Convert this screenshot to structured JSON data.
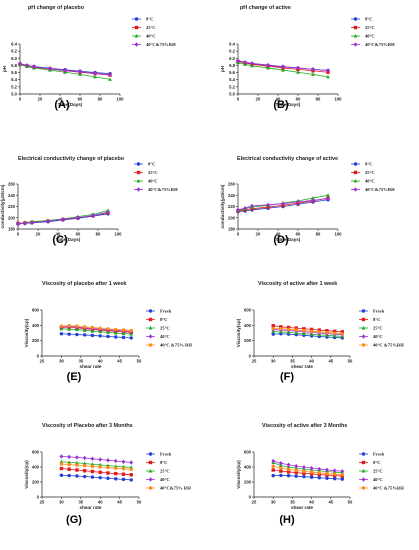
{
  "chart_data": [
    {
      "id": "A",
      "type": "line",
      "title": "pH change of placebo",
      "xlabel": "Time(Days)",
      "ylabel": "pH",
      "xlim": [
        0,
        100
      ],
      "ylim": [
        5.0,
        6.4
      ],
      "xticks": [
        0,
        20,
        40,
        60,
        80,
        100
      ],
      "yticks": [
        5.0,
        5.2,
        5.4,
        5.6,
        5.8,
        6.0,
        6.2,
        6.4
      ],
      "x": [
        0,
        7,
        14,
        30,
        45,
        60,
        75,
        90
      ],
      "series": [
        {
          "name": "8°C",
          "color": "#1f3fd6",
          "marker": "circle",
          "values": [
            5.84,
            5.8,
            5.77,
            5.72,
            5.68,
            5.64,
            5.6,
            5.57
          ]
        },
        {
          "name": "25°C",
          "color": "#e31a1c",
          "marker": "square",
          "values": [
            5.83,
            5.79,
            5.75,
            5.7,
            5.65,
            5.61,
            5.57,
            5.53
          ]
        },
        {
          "name": "40°C",
          "color": "#22aa22",
          "marker": "triangle",
          "values": [
            5.82,
            5.77,
            5.73,
            5.67,
            5.61,
            5.55,
            5.48,
            5.41
          ]
        },
        {
          "name": "40°C&75%RH",
          "color": "#9b30d9",
          "marker": "diamond",
          "values": [
            5.85,
            5.8,
            5.76,
            5.71,
            5.66,
            5.62,
            5.58,
            5.54
          ]
        }
      ],
      "legend": "right"
    },
    {
      "id": "B",
      "type": "line",
      "title": "pH change of active",
      "xlabel": "Time(Days)",
      "ylabel": "pH",
      "xlim": [
        0,
        100
      ],
      "ylim": [
        5.0,
        6.4
      ],
      "xticks": [
        0,
        20,
        40,
        60,
        80,
        100
      ],
      "yticks": [
        5.0,
        5.2,
        5.4,
        5.6,
        5.8,
        6.0,
        6.2,
        6.4
      ],
      "x": [
        0,
        7,
        14,
        30,
        45,
        60,
        75,
        90
      ],
      "series": [
        {
          "name": "8°C",
          "color": "#1f3fd6",
          "marker": "circle",
          "values": [
            5.92,
            5.88,
            5.85,
            5.8,
            5.76,
            5.73,
            5.69,
            5.66
          ]
        },
        {
          "name": "25°C",
          "color": "#e31a1c",
          "marker": "square",
          "values": [
            5.91,
            5.87,
            5.83,
            5.78,
            5.73,
            5.69,
            5.65,
            5.61
          ]
        },
        {
          "name": "40°C",
          "color": "#22aa22",
          "marker": "triangle",
          "values": [
            5.88,
            5.83,
            5.79,
            5.73,
            5.67,
            5.61,
            5.55,
            5.48
          ]
        },
        {
          "name": "40°C&75%RH",
          "color": "#9b30d9",
          "marker": "diamond",
          "values": [
            5.93,
            5.89,
            5.86,
            5.81,
            5.77,
            5.73,
            5.69,
            5.66
          ]
        }
      ],
      "legend": "right"
    },
    {
      "id": "C",
      "type": "line",
      "title": "Electrical conductivity change of placebo",
      "xlabel": "Time(Days)",
      "ylabel": "conductivity(μS/cm)",
      "xlim": [
        0,
        100
      ],
      "ylim": [
        180,
        260
      ],
      "xticks": [
        0,
        20,
        40,
        60,
        80,
        100
      ],
      "yticks": [
        180,
        200,
        220,
        240,
        260
      ],
      "x": [
        0,
        7,
        14,
        30,
        45,
        60,
        75,
        90
      ],
      "series": [
        {
          "name": "8°C",
          "color": "#1f3fd6",
          "marker": "circle",
          "values": [
            189,
            190,
            191,
            193,
            196,
            199,
            203,
            207
          ]
        },
        {
          "name": "25°C",
          "color": "#e31a1c",
          "marker": "square",
          "values": [
            190,
            191,
            192,
            194,
            197,
            200,
            204,
            209
          ]
        },
        {
          "name": "40°C",
          "color": "#22aa22",
          "marker": "triangle",
          "values": [
            190,
            191,
            193,
            195,
            198,
            202,
            206,
            213
          ]
        },
        {
          "name": "40°C&75%RH",
          "color": "#9b30d9",
          "marker": "diamond",
          "values": [
            189,
            190,
            191,
            194,
            197,
            200,
            204,
            210
          ]
        }
      ],
      "legend": "right"
    },
    {
      "id": "D",
      "type": "line",
      "title": "Electrical conductivity change of active",
      "xlabel": "Time(Days)",
      "ylabel": "conductivity(μS/cm)",
      "xlim": [
        0,
        100
      ],
      "ylim": [
        180,
        260
      ],
      "xticks": [
        0,
        20,
        40,
        60,
        80,
        100
      ],
      "yticks": [
        180,
        200,
        220,
        240,
        260
      ],
      "x": [
        0,
        7,
        14,
        30,
        45,
        60,
        75,
        90
      ],
      "series": [
        {
          "name": "8°C",
          "color": "#1f3fd6",
          "marker": "circle",
          "values": [
            211,
            212,
            214,
            217,
            220,
            224,
            228,
            232
          ]
        },
        {
          "name": "25°C",
          "color": "#e31a1c",
          "marker": "square",
          "values": [
            212,
            214,
            216,
            219,
            222,
            226,
            230,
            235
          ]
        },
        {
          "name": "40°C",
          "color": "#22aa22",
          "marker": "triangle",
          "values": [
            213,
            216,
            219,
            222,
            226,
            230,
            235,
            240
          ]
        },
        {
          "name": "40°C&75%RH",
          "color": "#9b30d9",
          "marker": "diamond",
          "values": [
            214,
            217,
            221,
            223,
            225,
            228,
            231,
            234
          ]
        }
      ],
      "legend": "right"
    },
    {
      "id": "E",
      "type": "line",
      "title": "Viscosity of placebo after 1 week",
      "xlabel": "shear rate",
      "ylabel": "Viscosity(cp)",
      "xlim": [
        25,
        50
      ],
      "ylim": [
        0,
        600
      ],
      "xticks": [
        25,
        30,
        35,
        40,
        45,
        50
      ],
      "yticks": [
        0,
        200,
        400,
        600
      ],
      "x": [
        30,
        32,
        34,
        36,
        38,
        40,
        42,
        44,
        46,
        48
      ],
      "series": [
        {
          "name": "Fresh",
          "color": "#1f3fd6",
          "marker": "circle",
          "values": [
            290,
            285,
            280,
            275,
            268,
            262,
            255,
            248,
            242,
            236
          ]
        },
        {
          "name": "8°C",
          "color": "#e31a1c",
          "marker": "square",
          "values": [
            372,
            378,
            368,
            355,
            347,
            338,
            330,
            322,
            315,
            308
          ]
        },
        {
          "name": "25°C",
          "color": "#22aa22",
          "marker": "triangle",
          "values": [
            355,
            350,
            345,
            335,
            325,
            316,
            308,
            300,
            292,
            286
          ]
        },
        {
          "name": "40°C",
          "color": "#9b30d9",
          "marker": "diamond",
          "values": [
            380,
            385,
            378,
            367,
            358,
            350,
            342,
            335,
            328,
            320
          ]
        },
        {
          "name": "40°C &75% RH",
          "color": "#ff8c1a",
          "marker": "circle",
          "values": [
            390,
            395,
            390,
            380,
            372,
            362,
            355,
            347,
            340,
            333
          ]
        }
      ],
      "legend": "right"
    },
    {
      "id": "F",
      "type": "line",
      "title": "Viscosity of active after 1 week",
      "xlabel": "shear rate",
      "ylabel": "Viscosity(cp)",
      "xlim": [
        25,
        50
      ],
      "ylim": [
        0,
        600
      ],
      "xticks": [
        25,
        30,
        35,
        40,
        45,
        50
      ],
      "yticks": [
        0,
        200,
        400,
        600
      ],
      "x": [
        30,
        32,
        34,
        36,
        38,
        40,
        42,
        44,
        46,
        48
      ],
      "series": [
        {
          "name": "Fresh",
          "color": "#1f3fd6",
          "marker": "circle",
          "values": [
            285,
            290,
            285,
            278,
            270,
            262,
            255,
            248,
            242,
            236
          ]
        },
        {
          "name": "8°C",
          "color": "#e31a1c",
          "marker": "square",
          "values": [
            395,
            380,
            372,
            364,
            355,
            347,
            338,
            330,
            322,
            315
          ]
        },
        {
          "name": "25°C",
          "color": "#22aa22",
          "marker": "triangle",
          "values": [
            320,
            315,
            308,
            300,
            292,
            284,
            277,
            270,
            263,
            256
          ]
        },
        {
          "name": "40°C",
          "color": "#9b30d9",
          "marker": "diamond",
          "values": [
            345,
            340,
            333,
            325,
            316,
            308,
            300,
            292,
            285,
            278
          ]
        },
        {
          "name": "40°C &75%RH",
          "color": "#ff8c1a",
          "marker": "circle",
          "values": [
            360,
            355,
            348,
            340,
            331,
            322,
            314,
            306,
            298,
            290
          ]
        }
      ],
      "legend": "right"
    },
    {
      "id": "G",
      "type": "line",
      "title": "Viscosity of Placebo after 3 Months",
      "xlabel": "shear rate",
      "ylabel": "Viscosity(cp)",
      "xlim": [
        25,
        50
      ],
      "ylim": [
        0,
        600
      ],
      "xticks": [
        25,
        30,
        35,
        40,
        45,
        50
      ],
      "yticks": [
        0,
        200,
        400,
        600
      ],
      "x": [
        30,
        32,
        34,
        36,
        38,
        40,
        42,
        44,
        46,
        48
      ],
      "series": [
        {
          "name": "Fresh",
          "color": "#1f3fd6",
          "marker": "circle",
          "values": [
            290,
            285,
            280,
            273,
            265,
            258,
            250,
            242,
            235,
            228
          ]
        },
        {
          "name": "8°C",
          "color": "#e31a1c",
          "marker": "square",
          "values": [
            380,
            370,
            360,
            350,
            340,
            330,
            320,
            312,
            304,
            296
          ]
        },
        {
          "name": "25°C",
          "color": "#22aa22",
          "marker": "triangle",
          "values": [
            470,
            462,
            455,
            447,
            437,
            428,
            418,
            410,
            402,
            394
          ]
        },
        {
          "name": "40°C",
          "color": "#9b30d9",
          "marker": "diamond",
          "values": [
            540,
            535,
            528,
            520,
            510,
            500,
            490,
            480,
            470,
            460
          ]
        },
        {
          "name": "40°C&75% RH",
          "color": "#ff8c1a",
          "marker": "circle",
          "values": [
            440,
            432,
            425,
            417,
            408,
            400,
            392,
            384,
            376,
            368
          ]
        }
      ],
      "legend": "right"
    },
    {
      "id": "H",
      "type": "line",
      "title": "Viscosity of active after 3 Months",
      "xlabel": "shear rate",
      "ylabel": "Viscosity(cp)",
      "xlim": [
        25,
        50
      ],
      "ylim": [
        0,
        600
      ],
      "xticks": [
        25,
        30,
        35,
        40,
        45,
        50
      ],
      "yticks": [
        0,
        200,
        400,
        600
      ],
      "x": [
        30,
        32,
        34,
        36,
        38,
        40,
        42,
        44,
        46,
        48
      ],
      "series": [
        {
          "name": "Fresh",
          "color": "#1f3fd6",
          "marker": "circle",
          "values": [
            285,
            288,
            284,
            278,
            271,
            264,
            257,
            250,
            244,
            238
          ]
        },
        {
          "name": "8°C",
          "color": "#e31a1c",
          "marker": "square",
          "values": [
            360,
            345,
            335,
            325,
            316,
            308,
            300,
            292,
            285,
            278
          ]
        },
        {
          "name": "25°C",
          "color": "#22aa22",
          "marker": "triangle",
          "values": [
            460,
            420,
            400,
            385,
            372,
            360,
            350,
            340,
            332,
            324
          ]
        },
        {
          "name": "40°C",
          "color": "#9b30d9",
          "marker": "diamond",
          "values": [
            480,
            450,
            430,
            412,
            398,
            385,
            373,
            362,
            352,
            343
          ]
        },
        {
          "name": "40°C &75%RH",
          "color": "#ff8c1a",
          "marker": "circle",
          "values": [
            410,
            385,
            368,
            355,
            343,
            332,
            322,
            313,
            305,
            297
          ]
        }
      ],
      "legend": "right"
    }
  ],
  "panel_labels": [
    "(A)",
    "(B)",
    "(C)",
    "(D)",
    "(E)",
    "(F)",
    "(G)",
    "(H)"
  ]
}
